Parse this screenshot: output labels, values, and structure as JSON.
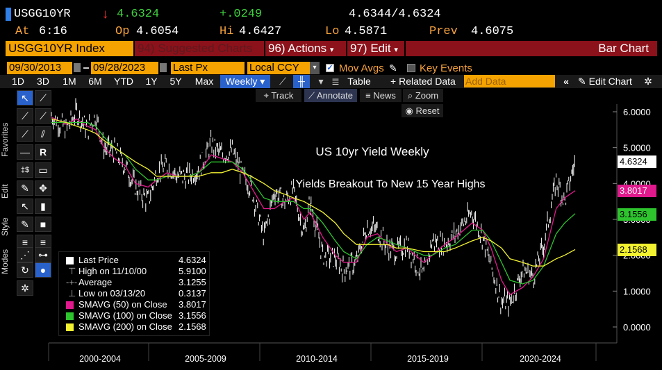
{
  "quote": {
    "ticker": "USGG10YR",
    "arrow": "↓",
    "last": "4.6324",
    "change": "+.0249",
    "bid_ask": "4.6344/4.6324",
    "at_label": "At",
    "time": "6:16",
    "op_label": "Op",
    "open": "4.6054",
    "hi_label": "Hi",
    "high": "4.6427",
    "lo_label": "Lo",
    "low": "4.5871",
    "prev_label": "Prev",
    "prev": "4.6075"
  },
  "toolbar": {
    "security": "USGG10YR Index",
    "suggested_num": "94)",
    "suggested": "Suggested Charts",
    "actions_num": "96)",
    "actions": "Actions",
    "edit_num": "97)",
    "edit": "Edit",
    "chart_type": "Bar Chart"
  },
  "settings": {
    "start_date": "09/30/2013",
    "end_date": "09/28/2023",
    "field": "Last Px",
    "currency": "Local CCY",
    "mov_avgs": "Mov Avgs",
    "key_events": "Key Events"
  },
  "periods": [
    "1D",
    "3D",
    "1M",
    "6M",
    "YTD",
    "1Y",
    "5Y",
    "Max"
  ],
  "frequency": "Weekly",
  "row5": {
    "table": "Table",
    "related": "Related Data",
    "add_data_placeholder": "Add Data",
    "edit_chart": "Edit Chart"
  },
  "chart_tools": {
    "track": "Track",
    "annotate": "Annotate",
    "news": "News",
    "zoom": "Zoom",
    "reset": "Reset"
  },
  "side_tabs": [
    "Favorites",
    "Edit",
    "Style",
    "Modes"
  ],
  "legend": [
    {
      "label": "Last Price",
      "value": "4.6324",
      "color": "#ffffff"
    },
    {
      "label": "High on 11/10/00",
      "value": "5.9100",
      "color": ""
    },
    {
      "label": "Average",
      "value": "3.1255",
      "color": ""
    },
    {
      "label": "Low on 03/13/20",
      "value": "0.3137",
      "color": ""
    },
    {
      "label": "SMAVG (50)  on Close",
      "value": "3.8017",
      "color": "#e0198c"
    },
    {
      "label": "SMAVG (100)  on Close",
      "value": "3.1556",
      "color": "#2ec42e"
    },
    {
      "label": "SMAVG (200)  on Close",
      "value": "2.1568",
      "color": "#f2f230"
    }
  ],
  "price_labels": [
    {
      "value": "4.6324",
      "bg": "#ffffff",
      "fg": "#000000"
    },
    {
      "value": "3.8017",
      "bg": "#e0198c",
      "fg": "#ffffff"
    },
    {
      "value": "3.1556",
      "bg": "#2ec42e",
      "fg": "#000000"
    },
    {
      "value": "2.1568",
      "bg": "#f2f230",
      "fg": "#000000"
    }
  ],
  "chart_data": {
    "type": "line",
    "title": "US 10yr Yield Weekly",
    "subtitle": "Yields Breakout To New 15 Year Highs",
    "x_labels": [
      "2000-2004",
      "2005-2009",
      "2010-2014",
      "2015-2019",
      "2020-2024"
    ],
    "y_ticks": [
      "6.0000",
      "5.0000",
      "4.0000",
      "3.0000",
      "2.0000",
      "1.0000",
      "0.0000"
    ],
    "ylim": [
      0,
      6
    ],
    "x": [
      1998.8,
      1999.5,
      2000.0,
      2000.5,
      2000.9,
      2001.3,
      2001.8,
      2002.3,
      2002.8,
      2003.4,
      2003.8,
      2004.3,
      2004.8,
      2005.3,
      2005.8,
      2006.4,
      2006.9,
      2007.4,
      2007.9,
      2008.3,
      2008.9,
      2009.4,
      2009.9,
      2010.3,
      2010.8,
      2011.1,
      2011.7,
      2012.3,
      2012.7,
      2013.3,
      2013.8,
      2014.3,
      2014.8,
      2015.2,
      2015.7,
      2016.5,
      2016.9,
      2017.5,
      2018.0,
      2018.8,
      2019.3,
      2019.7,
      2020.2,
      2020.6,
      2021.2,
      2021.7,
      2022.2,
      2022.8,
      2023.2,
      2023.7
    ],
    "series": [
      {
        "name": "Last Price",
        "color": "#ffffff",
        "values": [
          5.9,
          5.5,
          6.0,
          5.5,
          5.9,
          5.0,
          4.9,
          4.5,
          3.9,
          3.5,
          4.3,
          4.5,
          4.2,
          4.2,
          4.4,
          5.1,
          4.8,
          4.9,
          4.2,
          3.9,
          2.5,
          3.8,
          3.5,
          3.8,
          2.6,
          3.5,
          2.0,
          1.9,
          1.6,
          1.8,
          2.8,
          2.7,
          2.2,
          2.1,
          2.3,
          1.4,
          2.4,
          2.3,
          2.6,
          3.2,
          2.5,
          1.7,
          0.7,
          0.65,
          1.6,
          1.4,
          2.3,
          4.1,
          3.5,
          4.63
        ]
      },
      {
        "name": "SMAVG (50)",
        "color": "#e0198c",
        "values": [
          5.85,
          5.65,
          5.8,
          5.6,
          5.5,
          5.0,
          4.7,
          4.5,
          4.0,
          3.9,
          4.1,
          4.3,
          4.2,
          4.2,
          4.3,
          4.8,
          4.7,
          4.6,
          4.3,
          3.9,
          3.3,
          3.3,
          3.5,
          3.6,
          3.0,
          3.2,
          2.5,
          2.0,
          1.8,
          1.8,
          2.5,
          2.6,
          2.3,
          2.1,
          2.2,
          1.8,
          2.0,
          2.3,
          2.5,
          2.9,
          2.7,
          2.2,
          1.3,
          0.9,
          1.1,
          1.4,
          1.9,
          3.3,
          3.6,
          3.8
        ]
      },
      {
        "name": "SMAVG (100)",
        "color": "#2ec42e",
        "values": [
          5.7,
          5.7,
          5.7,
          5.7,
          5.6,
          5.3,
          5.0,
          4.8,
          4.4,
          4.1,
          4.1,
          4.2,
          4.2,
          4.2,
          4.3,
          4.6,
          4.6,
          4.6,
          4.4,
          4.1,
          3.6,
          3.5,
          3.5,
          3.5,
          3.3,
          3.3,
          2.9,
          2.4,
          2.1,
          1.9,
          2.3,
          2.5,
          2.4,
          2.3,
          2.2,
          2.0,
          2.0,
          2.2,
          2.3,
          2.7,
          2.7,
          2.4,
          1.8,
          1.3,
          1.2,
          1.3,
          1.7,
          2.6,
          2.9,
          3.16
        ]
      },
      {
        "name": "SMAVG (200)",
        "color": "#f2f230",
        "values": [
          5.8,
          5.7,
          5.6,
          5.5,
          5.4,
          5.2,
          5.0,
          4.8,
          4.6,
          4.4,
          4.2,
          4.2,
          4.2,
          4.2,
          4.2,
          4.3,
          4.3,
          4.4,
          4.3,
          4.2,
          4.0,
          3.8,
          3.7,
          3.6,
          3.5,
          3.4,
          3.2,
          2.9,
          2.6,
          2.3,
          2.3,
          2.3,
          2.3,
          2.2,
          2.2,
          2.1,
          2.1,
          2.1,
          2.2,
          2.4,
          2.5,
          2.4,
          2.2,
          1.9,
          1.8,
          1.7,
          1.7,
          1.9,
          2.0,
          2.16
        ]
      }
    ]
  }
}
